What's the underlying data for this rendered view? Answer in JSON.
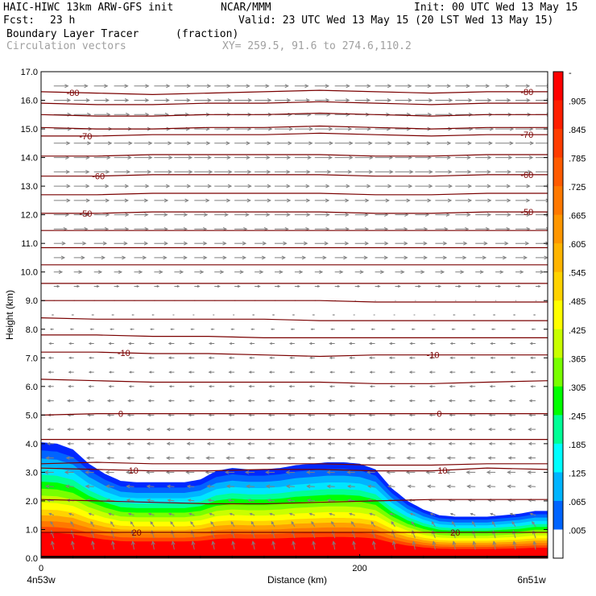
{
  "header": {
    "model_title": "HAIC-HIWC 13km ARW-GFS init",
    "org": "NCAR/MMM",
    "init": "Init: 00 UTC Wed 13 May 15",
    "fcst_label": "Fcst:",
    "fcst_value": "23 h",
    "valid": "Valid: 23 UTC Wed 13 May 15 (20 LST Wed 13 May 15)",
    "field_name": "Boundary Layer Tracer",
    "field_units": "(fraction)",
    "vector_label": "Circulation vectors",
    "xy_range": "XY= 259.5, 91.6 to 274.6,110.2"
  },
  "chart_data": {
    "type": "heatmap",
    "xlabel": "Distance (km)",
    "ylabel": "Height (km)",
    "xlim": [
      0,
      318
    ],
    "ylim": [
      0,
      17
    ],
    "x_ticks": [
      {
        "value": 0,
        "label": "0"
      },
      {
        "value": 200,
        "label": "200"
      }
    ],
    "x_end_labels": {
      "left": "4n53w",
      "right": "6n51w"
    },
    "y_ticks": [
      "0.0",
      "1.0",
      "2.0",
      "3.0",
      "4.0",
      "5.0",
      "6.0",
      "7.0",
      "8.0",
      "9.0",
      "10.0",
      "11.0",
      "12.0",
      "13.0",
      "14.0",
      "15.0",
      "16.0",
      "17.0"
    ],
    "colorbar_labels": [
      "-",
      ".905",
      ".845",
      ".785",
      ".725",
      ".665",
      ".605",
      ".545",
      ".485",
      ".425",
      ".365",
      ".305",
      ".245",
      ".185",
      ".125",
      ".065",
      ".005"
    ],
    "colorbar_colors": [
      "#ff0000",
      "#ff1e00",
      "#ff3c00",
      "#ff5a00",
      "#ff7800",
      "#ff9600",
      "#ffb400",
      "#ffd200",
      "#ffff00",
      "#c8ff00",
      "#78ff00",
      "#00ff00",
      "#00ff96",
      "#00ffff",
      "#00b4ff",
      "#0064ff",
      "#ffffff"
    ],
    "tracer_top_profile": {
      "x": [
        0,
        10,
        20,
        30,
        40,
        50,
        60,
        70,
        80,
        90,
        100,
        110,
        120,
        130,
        140,
        150,
        160,
        170,
        180,
        190,
        200,
        210,
        220,
        230,
        240,
        250,
        260,
        270,
        280,
        290,
        300,
        310,
        318
      ],
      "y": [
        4.05,
        4.0,
        3.8,
        3.3,
        2.95,
        2.7,
        2.65,
        2.65,
        2.65,
        2.65,
        2.75,
        3.05,
        3.15,
        3.1,
        3.1,
        3.15,
        3.25,
        3.3,
        3.35,
        3.35,
        3.3,
        3.1,
        2.45,
        2.0,
        1.7,
        1.5,
        1.45,
        1.45,
        1.45,
        1.5,
        1.55,
        1.65,
        1.65
      ]
    },
    "temperature_contours": [
      {
        "label": "-80",
        "y": [
          16.3,
          16.25,
          16.2,
          16.25,
          16.3,
          16.35,
          16.3,
          16.25,
          16.3,
          16.3
        ]
      },
      {
        "label": "",
        "y": [
          15.9,
          15.85,
          15.85,
          15.9,
          15.9,
          15.95,
          15.9,
          15.85,
          15.9,
          15.9
        ]
      },
      {
        "label": "",
        "y": [
          15.5,
          15.45,
          15.45,
          15.5,
          15.5,
          15.55,
          15.5,
          15.45,
          15.5,
          15.5
        ]
      },
      {
        "label": "",
        "y": [
          15.05,
          15.0,
          15.0,
          15.05,
          15.05,
          15.1,
          15.05,
          15.0,
          15.05,
          15.05
        ]
      },
      {
        "label": "-70",
        "y": [
          14.75,
          14.75,
          14.8,
          14.8,
          14.8,
          14.85,
          14.8,
          14.75,
          14.8,
          14.8
        ]
      },
      {
        "label": "",
        "y": [
          14.05,
          14.05,
          14.1,
          14.1,
          14.1,
          14.1,
          14.05,
          14.05,
          14.1,
          14.1
        ]
      },
      {
        "label": "-60",
        "y": [
          13.35,
          13.35,
          13.4,
          13.4,
          13.4,
          13.4,
          13.35,
          13.35,
          13.4,
          13.4
        ]
      },
      {
        "label": "",
        "y": [
          12.7,
          12.7,
          12.75,
          12.75,
          12.75,
          12.75,
          12.7,
          12.7,
          12.75,
          12.75
        ]
      },
      {
        "label": "-50",
        "y": [
          12.05,
          12.05,
          12.1,
          12.1,
          12.1,
          12.1,
          12.05,
          12.05,
          12.1,
          12.1
        ]
      },
      {
        "label": "",
        "y": [
          11.45,
          11.45,
          11.45,
          11.45,
          11.45,
          11.45,
          11.45,
          11.45,
          11.45,
          11.45
        ]
      },
      {
        "label": "",
        "y": [
          10.85,
          10.85,
          10.85,
          10.85,
          10.85,
          10.85,
          10.85,
          10.85,
          10.85,
          10.85
        ]
      },
      {
        "label": "",
        "y": [
          10.25,
          10.25,
          10.25,
          10.25,
          10.25,
          10.25,
          10.25,
          10.25,
          10.25,
          10.25
        ]
      },
      {
        "label": "",
        "y": [
          9.6,
          9.6,
          9.6,
          9.6,
          9.6,
          9.6,
          9.6,
          9.6,
          9.6,
          9.6
        ]
      },
      {
        "label": "",
        "y": [
          9.0,
          9.0,
          9.0,
          9.0,
          9.0,
          9.0,
          8.95,
          8.95,
          8.95,
          8.95
        ]
      },
      {
        "label": "",
        "y": [
          8.4,
          8.35,
          8.35,
          8.35,
          8.35,
          8.3,
          8.3,
          8.3,
          8.3,
          8.3
        ]
      },
      {
        "label": "",
        "y": [
          7.8,
          7.8,
          7.75,
          7.75,
          7.7,
          7.7,
          7.7,
          7.7,
          7.7,
          7.7
        ]
      },
      {
        "label": "-10",
        "y": [
          7.2,
          7.2,
          7.15,
          7.15,
          7.1,
          7.05,
          7.1,
          7.1,
          7.1,
          7.1
        ]
      },
      {
        "label": "",
        "y": [
          6.25,
          6.2,
          6.15,
          6.15,
          6.15,
          6.15,
          6.1,
          6.1,
          6.15,
          6.2
        ]
      },
      {
        "label": "0",
        "y": [
          5.0,
          5.05,
          5.05,
          5.05,
          5.05,
          5.05,
          5.05,
          5.05,
          5.05,
          5.05
        ]
      },
      {
        "label": "",
        "y": [
          4.15,
          4.15,
          4.15,
          4.15,
          4.15,
          4.15,
          4.15,
          4.15,
          4.15,
          4.15
        ]
      },
      {
        "label": "",
        "y": [
          3.3,
          3.35,
          3.3,
          3.3,
          3.3,
          3.3,
          3.25,
          3.25,
          3.3,
          3.3
        ]
      },
      {
        "label": "10",
        "y": [
          3.15,
          3.1,
          3.05,
          3.05,
          3.1,
          3.1,
          3.05,
          3.05,
          3.15,
          3.1
        ]
      },
      {
        "label": "",
        "y": [
          2.05,
          2.0,
          1.95,
          1.9,
          1.9,
          1.95,
          2.0,
          2.05,
          2.05,
          2.05
        ]
      },
      {
        "label": "20",
        "y": [
          0.9,
          0.9,
          0.9,
          0.9,
          0.9,
          0.9,
          0.9,
          0.9,
          0.9,
          0.9
        ]
      }
    ],
    "contour_x": [
      0,
      35,
      70,
      105,
      140,
      175,
      210,
      245,
      280,
      318
    ],
    "contour_label_positions": [
      {
        "label": "-80",
        "x": [
          20,
          305
        ]
      },
      {
        "label": "-70",
        "x": [
          28,
          305
        ]
      },
      {
        "label": "-60",
        "x": [
          36,
          305
        ]
      },
      {
        "label": "-50",
        "x": [
          28,
          305
        ]
      },
      {
        "label": "-10",
        "x": [
          52,
          246
        ]
      },
      {
        "label": "0",
        "x": [
          50,
          250
        ]
      },
      {
        "label": "10",
        "x": [
          58,
          252
        ]
      },
      {
        "label": "20",
        "x": [
          60,
          260
        ]
      }
    ],
    "contour_color": "#7a0000",
    "vector_color": "#808080",
    "wind_profile": {
      "heights": [
        0.3,
        0.7,
        1.1,
        1.5,
        2.0,
        2.5,
        3.0,
        3.5,
        4.0,
        4.5,
        5.0,
        5.5,
        6.0,
        6.5,
        7.0,
        7.5,
        8.0,
        8.5,
        9.0,
        9.5,
        10.0,
        10.5,
        11.0,
        11.5,
        12.0,
        12.5,
        13.0,
        13.5,
        14.0,
        14.5,
        15.0,
        15.5,
        16.0,
        16.5
      ],
      "u": [
        -0.1,
        -0.15,
        -0.2,
        -0.3,
        -0.4,
        -0.45,
        -0.5,
        -0.45,
        -0.4,
        -0.4,
        -0.35,
        -0.35,
        -0.3,
        -0.3,
        -0.3,
        -0.3,
        -0.2,
        -0.1,
        0.05,
        0.3,
        0.5,
        0.7,
        0.75,
        0.8,
        0.85,
        0.9,
        0.95,
        1.0,
        1.0,
        1.0,
        1.0,
        0.95,
        0.95,
        0.9
      ],
      "w": [
        1.0,
        0.9,
        0.6,
        0.2,
        0.1,
        0.05,
        0.0,
        0.0,
        0.0,
        0.0,
        0.0,
        0.0,
        0.0,
        0.0,
        0.0,
        0.0,
        0.0,
        0.0,
        0.0,
        0.0,
        0.0,
        0.0,
        0.0,
        0.0,
        0.0,
        0.0,
        0.0,
        0.0,
        0.0,
        0.0,
        0.0,
        0.0,
        0.0,
        0.0
      ]
    }
  }
}
